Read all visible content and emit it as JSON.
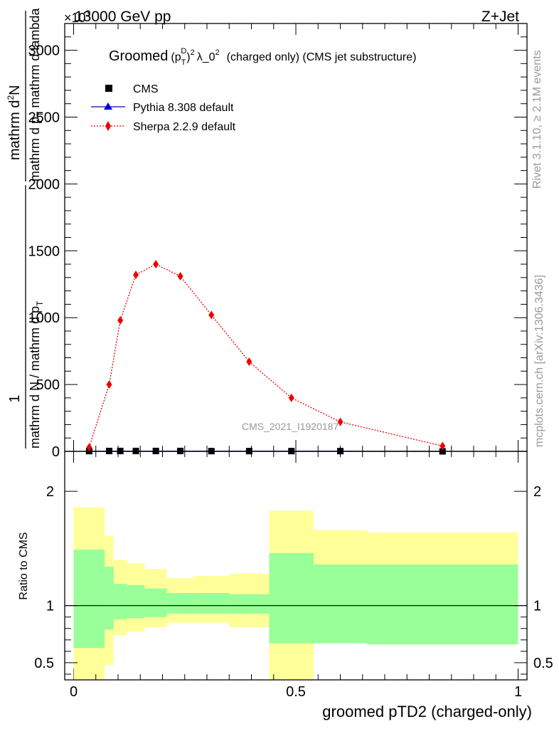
{
  "header": {
    "energy": "13000 GeV pp",
    "process": "Z+Jet",
    "exponent": "×10",
    "exponent_power": "3"
  },
  "side_labels": {
    "rivet": "Rivet 3.1.10, ≥ 2.1M events",
    "mcplots": "mcplots.cern.ch [arXiv:1306.3436]"
  },
  "plot_title": {
    "prefix": "Groomed",
    "suffix": "λ_0",
    "sup2": "2",
    "rest": "(charged only) (CMS jet substructure)"
  },
  "y_title_top": {
    "numerator": "mathrm d",
    "num_sup": "2",
    "num_tail": "N",
    "denominator": "mathrm d p",
    "den_sub": "T",
    "den_tail": " mathrm d lambda"
  },
  "y_title_main": {
    "numerator": "1",
    "denominator": "mathrm d N / mathrm d p",
    "den_sub": "T"
  },
  "watermark": "CMS_2021_I1920187",
  "colors": {
    "cms": "#000000",
    "pythia": "#0000cc",
    "sherpa": "#ee0000",
    "band_inner": "#99ff99",
    "band_outer": "#ffff99"
  },
  "chart_data": [
    {
      "type": "line",
      "panel": "main",
      "title": "Groomed (p_T^D)^2 λ_0^2 (charged only) (CMS jet substructure)",
      "xlabel": "groomed pTD2 (charged-only)",
      "ylabel": "1 / (mathrm d N / mathrm d p_T) mathrm d^2N / mathrm d p_T mathrm d lambda",
      "y_scale_note": "×10^3",
      "xlim": [
        -0.02,
        1.02
      ],
      "ylim": [
        0,
        3.2
      ],
      "y_ticks": [
        0,
        0.5,
        1.0,
        1.5,
        2.0,
        2.5,
        3.0
      ],
      "y_tick_labels": [
        "0",
        "500",
        "1000",
        "1500",
        "2000",
        "2500",
        "3000"
      ],
      "legend_position": "top-left",
      "series": [
        {
          "name": "CMS",
          "marker": "square",
          "x": [
            0.035,
            0.08,
            0.105,
            0.14,
            0.185,
            0.24,
            0.31,
            0.395,
            0.49,
            0.6,
            0.83
          ],
          "y": [
            0.002,
            0.003,
            0.003,
            0.003,
            0.003,
            0.003,
            0.002,
            0.002,
            0.002,
            0.002,
            0.0
          ]
        },
        {
          "name": "Pythia 8.308 default",
          "marker": "triangle",
          "x": [
            0.035,
            0.08,
            0.105,
            0.14,
            0.185,
            0.24,
            0.31,
            0.395,
            0.49,
            0.6,
            0.83
          ],
          "y": [
            0.001,
            0.001,
            0.001,
            0.001,
            0.001,
            0.001,
            0.001,
            0.001,
            0.001,
            0.001,
            0.0
          ]
        },
        {
          "name": "Sherpa 2.2.9 default",
          "marker": "diamond",
          "x": [
            0.035,
            0.08,
            0.105,
            0.14,
            0.185,
            0.24,
            0.31,
            0.395,
            0.49,
            0.6,
            0.83
          ],
          "y": [
            0.03,
            0.5,
            0.98,
            1.32,
            1.4,
            1.31,
            1.02,
            0.67,
            0.4,
            0.22,
            0.04
          ]
        }
      ]
    },
    {
      "type": "area",
      "panel": "ratio",
      "xlabel": "groomed pTD2 (charged-only)",
      "ylabel": "Ratio to CMS",
      "xlim": [
        -0.02,
        1.02
      ],
      "ylim": [
        0.35,
        2.35
      ],
      "x_ticks": [
        0,
        0.5,
        1
      ],
      "x_tick_labels": [
        "0",
        "0.5",
        "1"
      ],
      "y_ticks": [
        0.5,
        1,
        2
      ],
      "y_tick_labels": [
        "0.5",
        "1",
        "2"
      ],
      "bin_edges": [
        0.0,
        0.07,
        0.09,
        0.12,
        0.16,
        0.21,
        0.27,
        0.35,
        0.44,
        0.54,
        0.66,
        1.0
      ],
      "series": [
        {
          "name": "",
          "band": "inner_low",
          "values": [
            0.63,
            0.79,
            0.88,
            0.89,
            0.9,
            0.93,
            0.93,
            0.93,
            0.67,
            0.67,
            0.66
          ]
        },
        {
          "name": "",
          "band": "inner_high",
          "values": [
            1.49,
            1.34,
            1.19,
            1.18,
            1.15,
            1.11,
            1.11,
            1.1,
            1.46,
            1.36,
            1.36
          ]
        },
        {
          "name": "",
          "band": "outer_low",
          "values": [
            0.0,
            0.48,
            0.74,
            0.77,
            0.81,
            0.85,
            0.85,
            0.81,
            0.0,
            0.79,
            0.77
          ]
        },
        {
          "name": "",
          "band": "outer_high",
          "values": [
            1.86,
            1.61,
            1.4,
            1.37,
            1.32,
            1.24,
            1.26,
            1.28,
            1.83,
            1.66,
            1.64
          ]
        }
      ]
    }
  ]
}
